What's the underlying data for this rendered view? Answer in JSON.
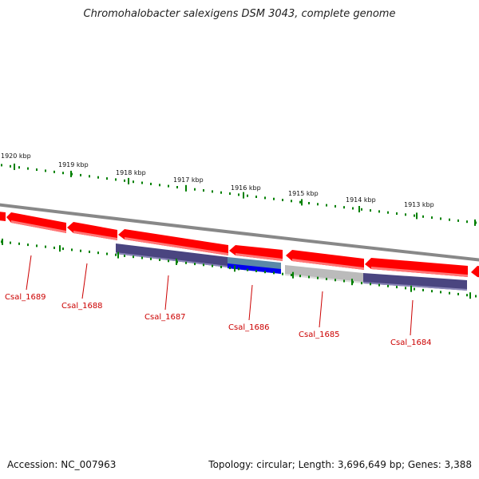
{
  "title": "Chromohalobacter salexigens DSM 3043, complete genome",
  "footer": {
    "accession_label": "Accession:",
    "accession": "NC_007963",
    "topology_label": "Topology:",
    "topology": "circular",
    "length_label": "Length:",
    "length": "3,696,649 bp",
    "genes_label": "Genes:",
    "genes": "3,388"
  },
  "kbp_ticks": [
    "1920 kbp",
    "1919 kbp",
    "1918 kbp",
    "1917 kbp",
    "1916 kbp",
    "1915 kbp",
    "1914 kbp",
    "1913 kbp"
  ],
  "gene_labels": [
    "Csal_1689",
    "Csal_1688",
    "Csal_1687",
    "Csal_1686",
    "Csal_1685",
    "Csal_1684"
  ],
  "colors": {
    "backbone": "#888888",
    "forward_gene": "#ff0000",
    "forward_gene_dark": "#cc0000",
    "track_dots": "#008000",
    "gene_label": "#cc0000",
    "reverse_gene_navy": "#4a4580",
    "reverse_gene_blue": "#0000ee",
    "reverse_gene_steel": "#5a88a8",
    "reverse_gene_gray": "#bbbbbb"
  }
}
